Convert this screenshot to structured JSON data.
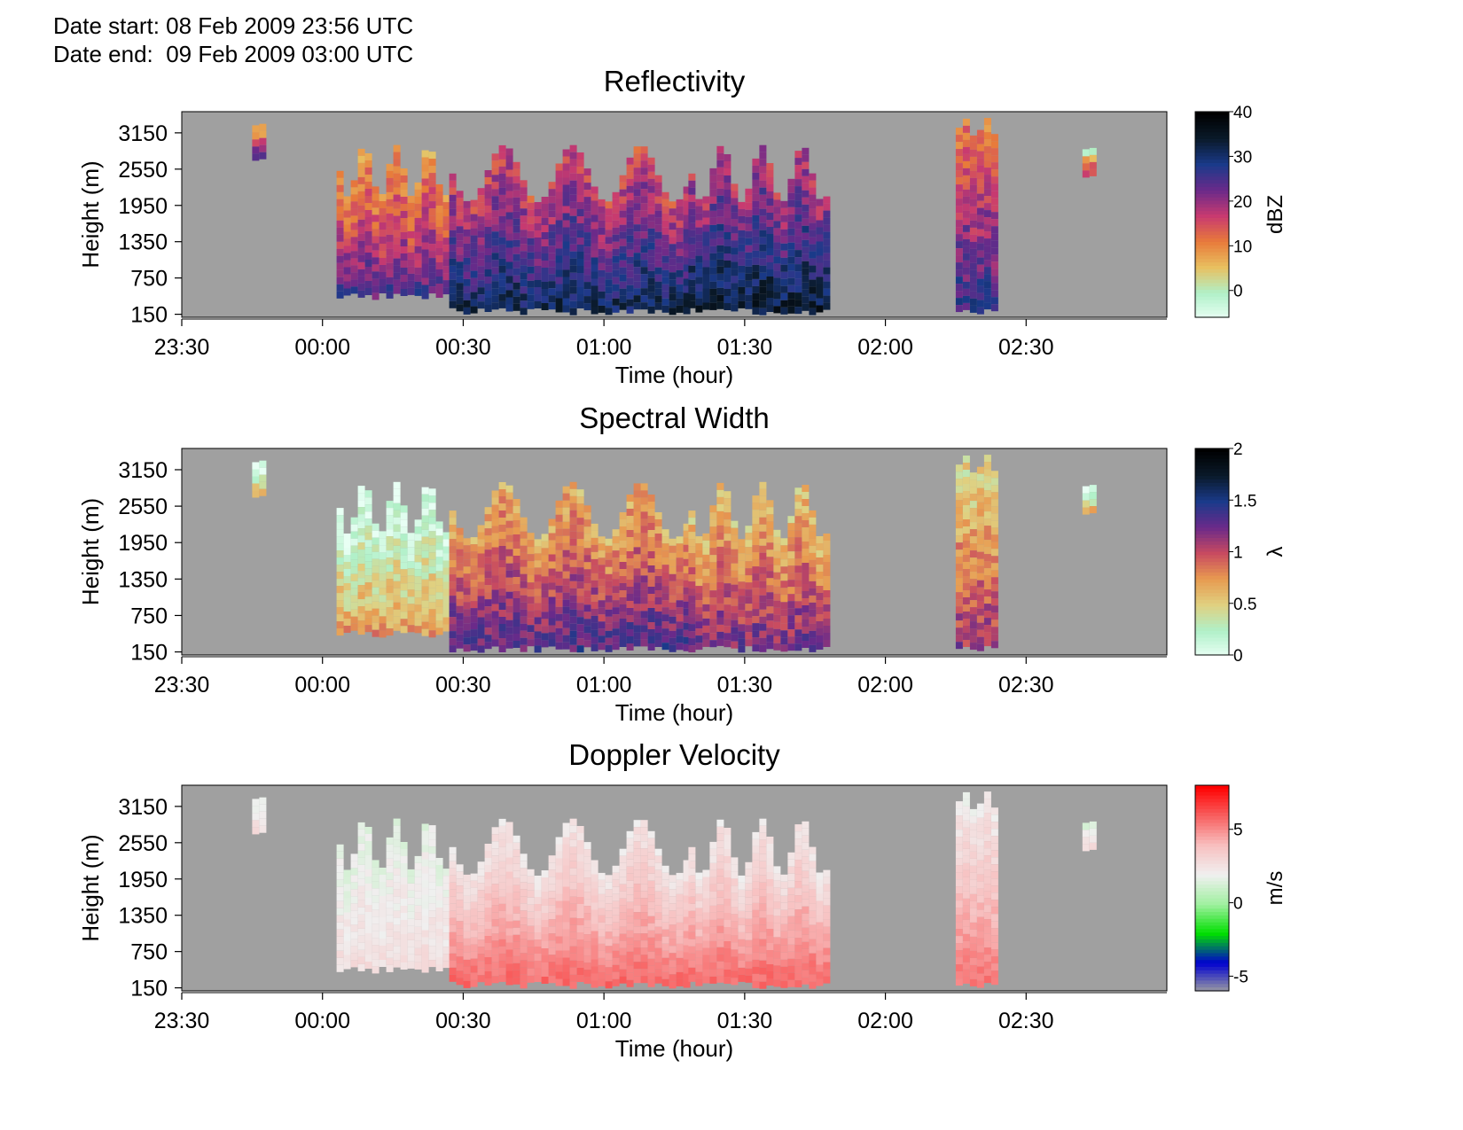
{
  "header": {
    "date_start": "Date start: 08 Feb 2009 23:56 UTC",
    "date_end": "Date end:  09 Feb 2009 03:00 UTC"
  },
  "chart_data": [
    {
      "type": "heatmap",
      "title": "Reflectivity",
      "xlabel": "Time (hour)",
      "ylabel": "Height (m)",
      "x_ticks": [
        "23:30",
        "00:00",
        "00:30",
        "01:00",
        "01:30",
        "02:00",
        "02:30"
      ],
      "x_tick_hours": [
        -0.5,
        0,
        0.5,
        1,
        1.5,
        2,
        2.5
      ],
      "xlim_hours": [
        -0.5,
        3.0
      ],
      "y_ticks": [
        "150",
        "750",
        "1350",
        "1950",
        "2550",
        "3150"
      ],
      "y_tick_values": [
        150,
        750,
        1350,
        1950,
        2550,
        3150
      ],
      "ylim": [
        100,
        3500
      ],
      "grid": false,
      "background_color": "#a0a0a0",
      "colorbar": {
        "label": "dBZ",
        "ticks": [
          "40",
          "30",
          "20",
          "10",
          "0"
        ],
        "tick_values": [
          40,
          30,
          20,
          10,
          0
        ],
        "range": [
          -6,
          40
        ],
        "colors": [
          "#e8fff4",
          "#b0f0c8",
          "#e8c060",
          "#e87a3a",
          "#c83a70",
          "#6a2a8a",
          "#1a3a8a",
          "#0a1a2a",
          "#000000"
        ]
      },
      "echo_segments": [
        {
          "start": -0.25,
          "end": -0.2,
          "bottom": 2800,
          "top": 3300,
          "intensity": 0.45
        },
        {
          "start": 0.05,
          "end": 0.45,
          "bottom": 500,
          "top": 2950,
          "intensity": 0.5
        },
        {
          "start": 0.45,
          "end": 1.3,
          "bottom": 250,
          "top": 2950,
          "intensity": 0.65
        },
        {
          "start": 1.3,
          "end": 1.8,
          "bottom": 250,
          "top": 2950,
          "intensity": 0.7
        },
        {
          "start": 2.25,
          "end": 2.38,
          "bottom": 250,
          "top": 3400,
          "intensity": 0.55
        },
        {
          "start": 2.7,
          "end": 2.75,
          "bottom": 2500,
          "top": 2900,
          "intensity": 0.35
        }
      ]
    },
    {
      "type": "heatmap",
      "title": "Spectral Width",
      "xlabel": "Time (hour)",
      "ylabel": "Height (m)",
      "x_ticks": [
        "23:30",
        "00:00",
        "00:30",
        "01:00",
        "01:30",
        "02:00",
        "02:30"
      ],
      "x_tick_hours": [
        -0.5,
        0,
        0.5,
        1,
        1.5,
        2,
        2.5
      ],
      "xlim_hours": [
        -0.5,
        3.0
      ],
      "y_ticks": [
        "150",
        "750",
        "1350",
        "1950",
        "2550",
        "3150"
      ],
      "y_tick_values": [
        150,
        750,
        1350,
        1950,
        2550,
        3150
      ],
      "ylim": [
        100,
        3500
      ],
      "grid": false,
      "background_color": "#a0a0a0",
      "colorbar": {
        "label": "λ",
        "ticks": [
          "2",
          "1.5",
          "1",
          "0.5",
          "0"
        ],
        "tick_values": [
          2,
          1.5,
          1,
          0.5,
          0
        ],
        "range": [
          0,
          2
        ],
        "colors": [
          "#e8fff4",
          "#b0f0c8",
          "#e0d080",
          "#e89a50",
          "#c84a60",
          "#6a2a8a",
          "#1a3a8a",
          "#0a1a2a",
          "#000000"
        ]
      },
      "echo_segments": [
        {
          "start": -0.25,
          "end": -0.2,
          "bottom": 2800,
          "top": 3300,
          "intensity": 0.15
        },
        {
          "start": 0.05,
          "end": 0.45,
          "bottom": 500,
          "top": 2950,
          "intensity": 0.2
        },
        {
          "start": 0.45,
          "end": 1.3,
          "bottom": 250,
          "top": 2950,
          "intensity": 0.5
        },
        {
          "start": 1.3,
          "end": 1.8,
          "bottom": 250,
          "top": 2950,
          "intensity": 0.45
        },
        {
          "start": 2.25,
          "end": 2.38,
          "bottom": 250,
          "top": 3400,
          "intensity": 0.4
        },
        {
          "start": 2.7,
          "end": 2.75,
          "bottom": 2500,
          "top": 2900,
          "intensity": 0.15
        }
      ]
    },
    {
      "type": "heatmap",
      "title": "Doppler Velocity",
      "xlabel": "Time (hour)",
      "ylabel": "Height (m)",
      "x_ticks": [
        "23:30",
        "00:00",
        "00:30",
        "01:00",
        "01:30",
        "02:00",
        "02:30"
      ],
      "x_tick_hours": [
        -0.5,
        0,
        0.5,
        1,
        1.5,
        2,
        2.5
      ],
      "xlim_hours": [
        -0.5,
        3.0
      ],
      "y_ticks": [
        "150",
        "750",
        "1350",
        "1950",
        "2550",
        "3150"
      ],
      "y_tick_values": [
        150,
        750,
        1350,
        1950,
        2550,
        3150
      ],
      "ylim": [
        100,
        3500
      ],
      "grid": false,
      "background_color": "#a0a0a0",
      "colorbar": {
        "label": "m/s",
        "ticks": [
          "5",
          "0",
          "-5"
        ],
        "tick_values": [
          5,
          0,
          -5
        ],
        "range": [
          -6,
          8
        ],
        "colors": [
          "#a0a0a0",
          "#0000d0",
          "#00e000",
          "#a0f0a0",
          "#f0f0f0",
          "#f8c0c0",
          "#f86060",
          "#ff0000"
        ]
      },
      "echo_segments": [
        {
          "start": -0.25,
          "end": -0.2,
          "bottom": 2800,
          "top": 3300,
          "intensity": 0.55
        },
        {
          "start": 0.05,
          "end": 0.45,
          "bottom": 500,
          "top": 2950,
          "intensity": 0.55
        },
        {
          "start": 0.45,
          "end": 1.3,
          "bottom": 250,
          "top": 2950,
          "intensity": 0.6
        },
        {
          "start": 1.3,
          "end": 1.8,
          "bottom": 250,
          "top": 2950,
          "intensity": 0.6
        },
        {
          "start": 2.25,
          "end": 2.38,
          "bottom": 250,
          "top": 3400,
          "intensity": 0.58
        },
        {
          "start": 2.7,
          "end": 2.75,
          "bottom": 2500,
          "top": 2900,
          "intensity": 0.55
        }
      ]
    }
  ]
}
